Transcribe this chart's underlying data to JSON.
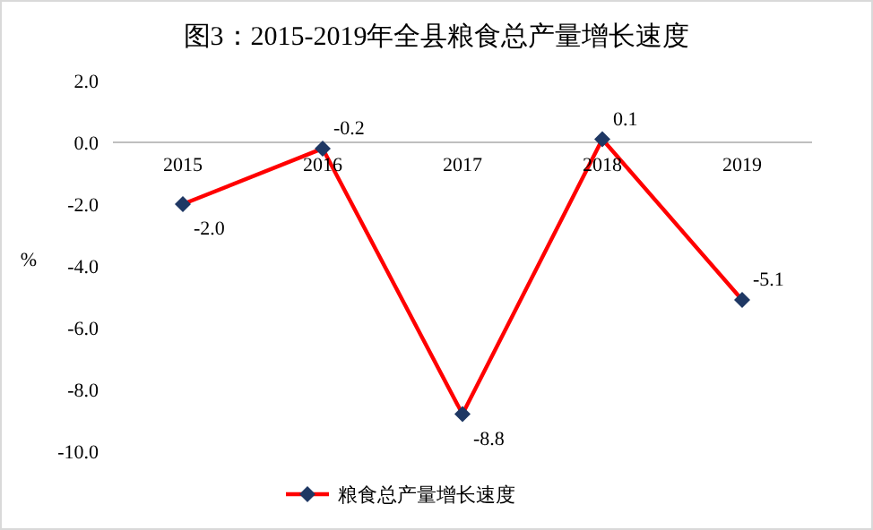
{
  "chart_data": {
    "type": "line",
    "title": "图3：2015-2019年全县粮食总产量增长速度",
    "ylabel": "%",
    "categories": [
      "2015",
      "2016",
      "2017",
      "2018",
      "2019"
    ],
    "series": [
      {
        "name": "粮食总产量增长速度",
        "color": "#ff0000",
        "colors": [
          "#1f3864",
          "#1f3864",
          "#1f3864",
          "#1f3864",
          "#1f3864"
        ],
        "values": [
          -2.0,
          -0.2,
          -8.8,
          0.1,
          -5.1
        ],
        "value_labels": [
          "-2.0",
          "-0.2",
          "-8.8",
          "0.1",
          "-5.1"
        ]
      }
    ],
    "ylim": [
      -10,
      2
    ],
    "yticks": [
      {
        "value": 2,
        "label": "2.0"
      },
      {
        "value": 0,
        "label": "0.0"
      },
      {
        "value": -2,
        "label": "-2.0"
      },
      {
        "value": -4,
        "label": "-4.0"
      },
      {
        "value": -6,
        "label": "-6.0"
      },
      {
        "value": -8,
        "label": "-8.0"
      },
      {
        "value": -10,
        "label": "-10.0"
      }
    ],
    "marker": "diamond",
    "line_style": "solid",
    "grid": false,
    "legend": "bottom"
  }
}
